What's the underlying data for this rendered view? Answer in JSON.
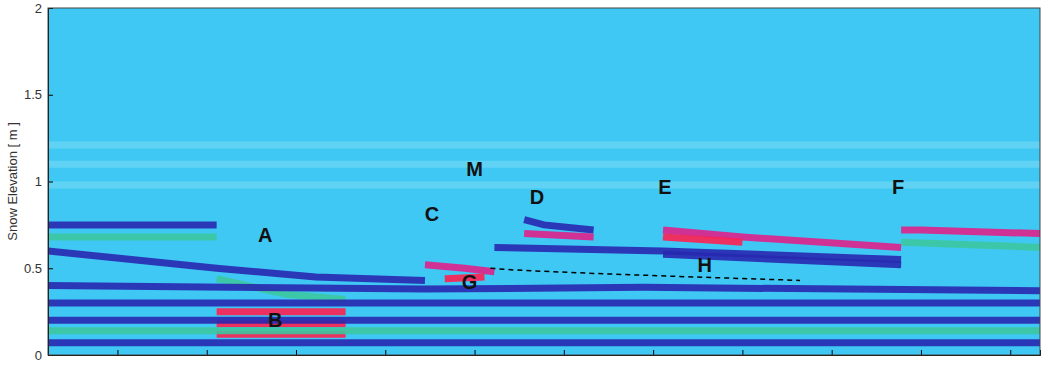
{
  "chart_data": {
    "type": "line",
    "color": "#40c8f4",
    "y_label": "Snow Elevation [ m ]",
    "xlim": [
      0,
      100
    ],
    "xticks": [
      7,
      16,
      25,
      34,
      43,
      52,
      61,
      70,
      79,
      88,
      97
    ],
    "ylim": [
      0,
      2
    ],
    "yticks": [
      0,
      0.5,
      1,
      1.5,
      2
    ],
    "tick_labels": "y",
    "series": [
      {
        "color": "#64d4f4",
        "line_style": "solid",
        "x": [
          0,
          100
        ],
        "values": [
          1.21,
          1.21
        ]
      },
      {
        "color": "#64d4f4",
        "line_style": "solid",
        "x": [
          0,
          100
        ],
        "values": [
          1.1,
          1.1
        ]
      },
      {
        "color": "#64d4f4",
        "line_style": "solid",
        "x": [
          0,
          100
        ],
        "values": [
          0.98,
          0.98
        ]
      },
      {
        "color": "#2828b0",
        "line_style": "solid",
        "x": [
          0,
          17
        ],
        "values": [
          0.75,
          0.75
        ]
      },
      {
        "color": "#3cc8a0",
        "line_style": "solid",
        "x": [
          0,
          17
        ],
        "values": [
          0.68,
          0.68
        ]
      },
      {
        "color": "#2828b0",
        "line_style": "solid",
        "x": [
          0,
          17,
          27,
          38
        ],
        "values": [
          0.6,
          0.5,
          0.45,
          0.43
        ]
      },
      {
        "color": "#3cc8a0",
        "line_style": "solid",
        "x": [
          17,
          24,
          30
        ],
        "values": [
          0.44,
          0.35,
          0.32
        ]
      },
      {
        "color": "#2828b0",
        "line_style": "solid",
        "x": [
          0,
          38,
          60,
          100
        ],
        "values": [
          0.4,
          0.38,
          0.39,
          0.37
        ]
      },
      {
        "color": "#2828b0",
        "line_style": "solid",
        "x": [
          0,
          100
        ],
        "values": [
          0.3,
          0.3
        ]
      },
      {
        "color": "#ff2050",
        "line_style": "solid",
        "x": [
          17,
          30
        ],
        "values": [
          0.25,
          0.25
        ]
      },
      {
        "color": "#ff2050",
        "line_style": "solid",
        "x": [
          17,
          30
        ],
        "values": [
          0.18,
          0.18
        ]
      },
      {
        "color": "#ff2050",
        "line_style": "solid",
        "x": [
          17,
          30
        ],
        "values": [
          0.12,
          0.12
        ]
      },
      {
        "color": "#2828b0",
        "line_style": "solid",
        "x": [
          0,
          100
        ],
        "values": [
          0.2,
          0.2
        ]
      },
      {
        "color": "#3cc8a0",
        "line_style": "solid",
        "x": [
          0,
          100
        ],
        "values": [
          0.14,
          0.14
        ]
      },
      {
        "color": "#2828b0",
        "line_style": "solid",
        "x": [
          0,
          100
        ],
        "values": [
          0.07,
          0.07
        ]
      },
      {
        "color": "#e0208a",
        "line_style": "solid",
        "x": [
          38,
          42,
          45
        ],
        "values": [
          0.52,
          0.5,
          0.48
        ]
      },
      {
        "color": "#ff2050",
        "line_style": "solid",
        "x": [
          40,
          44
        ],
        "values": [
          0.44,
          0.45
        ]
      },
      {
        "color": "#2828b0",
        "line_style": "solid",
        "x": [
          48,
          50,
          55
        ],
        "values": [
          0.78,
          0.75,
          0.72
        ]
      },
      {
        "color": "#e0208a",
        "line_style": "solid",
        "x": [
          48,
          55
        ],
        "values": [
          0.7,
          0.68
        ]
      },
      {
        "color": "#2828b0",
        "line_style": "solid",
        "x": [
          45,
          62,
          86
        ],
        "values": [
          0.62,
          0.6,
          0.55
        ]
      },
      {
        "color": "#e0208a",
        "line_style": "solid",
        "x": [
          62,
          70,
          86
        ],
        "values": [
          0.72,
          0.68,
          0.62
        ]
      },
      {
        "color": "#ff2050",
        "line_style": "solid",
        "x": [
          62,
          70
        ],
        "values": [
          0.68,
          0.65
        ]
      },
      {
        "color": "#2828b0",
        "line_style": "solid",
        "x": [
          62,
          86
        ],
        "values": [
          0.58,
          0.52
        ]
      },
      {
        "color": "#e0208a",
        "line_style": "solid",
        "x": [
          86,
          88,
          100
        ],
        "values": [
          0.72,
          0.72,
          0.7
        ]
      },
      {
        "color": "#3cc8a0",
        "line_style": "solid",
        "x": [
          86,
          100
        ],
        "values": [
          0.65,
          0.62
        ]
      },
      {
        "color": "#000000",
        "line_style": "dashed",
        "x": [
          44.6,
          47,
          55,
          65,
          75.8
        ],
        "values": [
          0.5,
          0.49,
          0.47,
          0.45,
          0.43
        ]
      }
    ],
    "annotations": [
      {
        "text": "A",
        "x": 21.9,
        "y": 0.68
      },
      {
        "text": "B",
        "x": 22.9,
        "y": 0.19
      },
      {
        "text": "C",
        "x": 38.7,
        "y": 0.8
      },
      {
        "text": "M",
        "x": 43.0,
        "y": 1.06
      },
      {
        "text": "D",
        "x": 49.3,
        "y": 0.9
      },
      {
        "text": "E",
        "x": 62.2,
        "y": 0.96
      },
      {
        "text": "F",
        "x": 85.7,
        "y": 0.96
      },
      {
        "text": "G",
        "x": 42.5,
        "y": 0.41
      },
      {
        "text": "H",
        "x": 66.2,
        "y": 0.51
      }
    ]
  }
}
